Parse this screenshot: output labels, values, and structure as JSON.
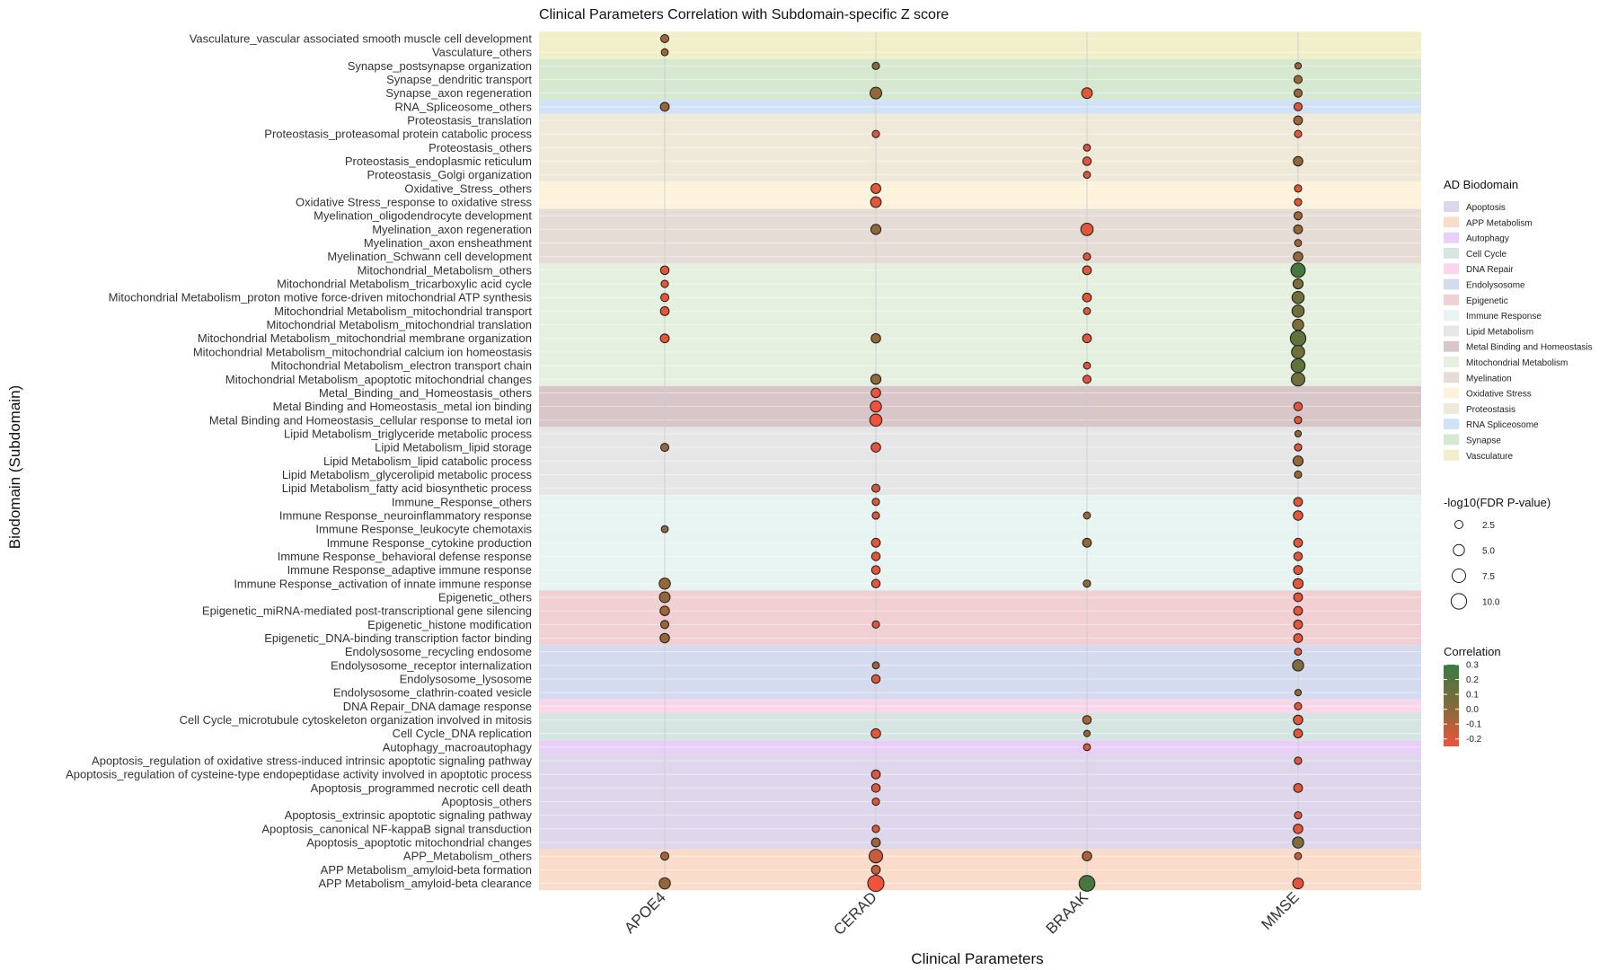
{
  "chart_data": {
    "type": "scatter",
    "title": "Clinical Parameters Correlation with Subdomain-specific Z score",
    "xlabel": "Clinical Parameters",
    "ylabel": "Biodomain (Subdomain)",
    "x_categories": [
      "APOE4",
      "CERAD",
      "BRAAK",
      "MMSE"
    ],
    "y_categories": [
      "Vasculature_vascular associated smooth muscle cell development",
      "Vasculature_others",
      "Synapse_postsynapse organization",
      "Synapse_dendritic transport",
      "Synapse_axon regeneration",
      "RNA_Spliceosome_others",
      "Proteostasis_translation",
      "Proteostasis_proteasomal protein catabolic process",
      "Proteostasis_others",
      "Proteostasis_endoplasmic reticulum",
      "Proteostasis_Golgi organization",
      "Oxidative_Stress_others",
      "Oxidative Stress_response to oxidative stress",
      "Myelination_oligodendrocyte development",
      "Myelination_axon regeneration",
      "Myelination_axon ensheathment",
      "Myelination_Schwann cell development",
      "Mitochondrial_Metabolism_others",
      "Mitochondrial Metabolism_tricarboxylic acid cycle",
      "Mitochondrial Metabolism_proton motive force-driven mitochondrial ATP synthesis",
      "Mitochondrial Metabolism_mitochondrial transport",
      "Mitochondrial Metabolism_mitochondrial translation",
      "Mitochondrial Metabolism_mitochondrial membrane organization",
      "Mitochondrial Metabolism_mitochondrial calcium ion homeostasis",
      "Mitochondrial Metabolism_electron transport chain",
      "Mitochondrial Metabolism_apoptotic mitochondrial changes",
      "Metal_Binding_and_Homeostasis_others",
      "Metal Binding and Homeostasis_metal ion binding",
      "Metal Binding and Homeostasis_cellular response to metal ion",
      "Lipid Metabolism_triglyceride metabolic process",
      "Lipid Metabolism_lipid storage",
      "Lipid Metabolism_lipid catabolic process",
      "Lipid Metabolism_glycerolipid metabolic process",
      "Lipid Metabolism_fatty acid biosynthetic process",
      "Immune_Response_others",
      "Immune Response_neuroinflammatory response",
      "Immune Response_leukocyte chemotaxis",
      "Immune Response_cytokine production",
      "Immune Response_behavioral defense response",
      "Immune Response_adaptive immune response",
      "Immune Response_activation of innate immune response",
      "Epigenetic_others",
      "Epigenetic_miRNA-mediated post-transcriptional gene silencing",
      "Epigenetic_histone modification",
      "Epigenetic_DNA-binding transcription factor binding",
      "Endolysosome_recycling endosome",
      "Endolysosome_receptor internalization",
      "Endolysosome_lysosome",
      "Endolysosome_clathrin-coated vesicle",
      "DNA Repair_DNA damage response",
      "Cell Cycle_microtubule cytoskeleton organization involved in mitosis",
      "Cell Cycle_DNA replication",
      "Autophagy_macroautophagy",
      "Apoptosis_regulation of oxidative stress-induced intrinsic apoptotic signaling pathway",
      "Apoptosis_regulation of cysteine-type endopeptidase activity involved in apoptotic process",
      "Apoptosis_programmed necrotic cell death",
      "Apoptosis_others",
      "Apoptosis_extrinsic apoptotic signaling pathway",
      "Apoptosis_canonical NF-kappaB signal transduction",
      "Apoptosis_apoptotic mitochondrial changes",
      "APP_Metabolism_others",
      "APP Metabolism_amyloid-beta formation",
      "APP Metabolism_amyloid-beta clearance"
    ],
    "bands": [
      {
        "from": 0,
        "to": 1,
        "color": "#f1efc9"
      },
      {
        "from": 2,
        "to": 4,
        "color": "#d6e8d0"
      },
      {
        "from": 5,
        "to": 5,
        "color": "#d2e2f6"
      },
      {
        "from": 6,
        "to": 10,
        "color": "#efe9d9"
      },
      {
        "from": 11,
        "to": 12,
        "color": "#fdf2dc"
      },
      {
        "from": 13,
        "to": 16,
        "color": "#e6dcd6"
      },
      {
        "from": 17,
        "to": 25,
        "color": "#e6f0e0"
      },
      {
        "from": 26,
        "to": 28,
        "color": "#d9c6c8"
      },
      {
        "from": 29,
        "to": 33,
        "color": "#e6e6e6"
      },
      {
        "from": 34,
        "to": 40,
        "color": "#e8f4f2"
      },
      {
        "from": 41,
        "to": 44,
        "color": "#f0d0d3"
      },
      {
        "from": 45,
        "to": 48,
        "color": "#d5dbef"
      },
      {
        "from": 49,
        "to": 49,
        "color": "#f9d6ea"
      },
      {
        "from": 50,
        "to": 51,
        "color": "#d5e5e2"
      },
      {
        "from": 52,
        "to": 52,
        "color": "#e8cff7"
      },
      {
        "from": 53,
        "to": 59,
        "color": "#ded6ea"
      },
      {
        "from": 60,
        "to": 62,
        "color": "#fbdccb"
      }
    ],
    "points": [
      {
        "row": 0,
        "col": 0,
        "r": -0.05,
        "p": 2.5
      },
      {
        "row": 1,
        "col": 0,
        "r": -0.05,
        "p": 1.8
      },
      {
        "row": 2,
        "col": 1,
        "r": 0.0,
        "p": 2.0
      },
      {
        "row": 2,
        "col": 3,
        "r": -0.05,
        "p": 1.5
      },
      {
        "row": 3,
        "col": 3,
        "r": -0.05,
        "p": 2.5
      },
      {
        "row": 4,
        "col": 1,
        "r": -0.02,
        "p": 5.5
      },
      {
        "row": 4,
        "col": 2,
        "r": -0.22,
        "p": 4.5
      },
      {
        "row": 4,
        "col": 3,
        "r": -0.05,
        "p": 2.5
      },
      {
        "row": 5,
        "col": 0,
        "r": -0.03,
        "p": 3.0
      },
      {
        "row": 5,
        "col": 3,
        "r": -0.2,
        "p": 2.5
      },
      {
        "row": 6,
        "col": 3,
        "r": -0.05,
        "p": 3.0
      },
      {
        "row": 7,
        "col": 1,
        "r": -0.2,
        "p": 2.0
      },
      {
        "row": 7,
        "col": 3,
        "r": -0.22,
        "p": 2.0
      },
      {
        "row": 8,
        "col": 2,
        "r": -0.18,
        "p": 1.8
      },
      {
        "row": 9,
        "col": 2,
        "r": -0.2,
        "p": 2.8
      },
      {
        "row": 9,
        "col": 3,
        "r": -0.02,
        "p": 3.5
      },
      {
        "row": 10,
        "col": 2,
        "r": -0.2,
        "p": 1.8
      },
      {
        "row": 11,
        "col": 1,
        "r": -0.22,
        "p": 3.8
      },
      {
        "row": 11,
        "col": 3,
        "r": -0.2,
        "p": 2.0
      },
      {
        "row": 12,
        "col": 1,
        "r": -0.22,
        "p": 4.5
      },
      {
        "row": 12,
        "col": 3,
        "r": -0.22,
        "p": 2.0
      },
      {
        "row": 13,
        "col": 3,
        "r": -0.05,
        "p": 2.5
      },
      {
        "row": 14,
        "col": 1,
        "r": -0.02,
        "p": 4.0
      },
      {
        "row": 14,
        "col": 2,
        "r": -0.22,
        "p": 6.2
      },
      {
        "row": 14,
        "col": 3,
        "r": -0.02,
        "p": 3.0
      },
      {
        "row": 15,
        "col": 3,
        "r": -0.05,
        "p": 1.8
      },
      {
        "row": 16,
        "col": 2,
        "r": -0.2,
        "p": 2.0
      },
      {
        "row": 16,
        "col": 3,
        "r": -0.02,
        "p": 3.5
      },
      {
        "row": 17,
        "col": 0,
        "r": -0.22,
        "p": 2.8
      },
      {
        "row": 17,
        "col": 2,
        "r": -0.22,
        "p": 3.0
      },
      {
        "row": 17,
        "col": 3,
        "r": 0.25,
        "p": 8.5
      },
      {
        "row": 18,
        "col": 0,
        "r": -0.22,
        "p": 2.0
      },
      {
        "row": 18,
        "col": 3,
        "r": 0.05,
        "p": 4.0
      },
      {
        "row": 19,
        "col": 0,
        "r": -0.22,
        "p": 2.5
      },
      {
        "row": 19,
        "col": 2,
        "r": -0.22,
        "p": 3.0
      },
      {
        "row": 19,
        "col": 3,
        "r": 0.1,
        "p": 6.0
      },
      {
        "row": 20,
        "col": 0,
        "r": -0.22,
        "p": 3.0
      },
      {
        "row": 20,
        "col": 2,
        "r": -0.2,
        "p": 1.8
      },
      {
        "row": 20,
        "col": 3,
        "r": 0.1,
        "p": 6.0
      },
      {
        "row": 21,
        "col": 3,
        "r": 0.05,
        "p": 5.0
      },
      {
        "row": 22,
        "col": 0,
        "r": -0.22,
        "p": 3.0
      },
      {
        "row": 22,
        "col": 1,
        "r": -0.02,
        "p": 3.5
      },
      {
        "row": 22,
        "col": 2,
        "r": -0.2,
        "p": 3.0
      },
      {
        "row": 22,
        "col": 3,
        "r": 0.15,
        "p": 10.0
      },
      {
        "row": 23,
        "col": 3,
        "r": 0.1,
        "p": 7.0
      },
      {
        "row": 24,
        "col": 2,
        "r": -0.2,
        "p": 1.8
      },
      {
        "row": 24,
        "col": 3,
        "r": 0.15,
        "p": 8.0
      },
      {
        "row": 25,
        "col": 1,
        "r": -0.02,
        "p": 4.0
      },
      {
        "row": 25,
        "col": 2,
        "r": -0.22,
        "p": 2.5
      },
      {
        "row": 25,
        "col": 3,
        "r": 0.1,
        "p": 7.5
      },
      {
        "row": 26,
        "col": 1,
        "r": -0.25,
        "p": 3.5
      },
      {
        "row": 27,
        "col": 1,
        "r": -0.25,
        "p": 5.0
      },
      {
        "row": 27,
        "col": 3,
        "r": -0.22,
        "p": 2.8
      },
      {
        "row": 28,
        "col": 1,
        "r": -0.25,
        "p": 6.0
      },
      {
        "row": 28,
        "col": 3,
        "r": -0.22,
        "p": 2.0
      },
      {
        "row": 29,
        "col": 3,
        "r": -0.02,
        "p": 1.5
      },
      {
        "row": 30,
        "col": 0,
        "r": -0.02,
        "p": 2.5
      },
      {
        "row": 30,
        "col": 1,
        "r": -0.22,
        "p": 3.5
      },
      {
        "row": 30,
        "col": 3,
        "r": -0.2,
        "p": 2.0
      },
      {
        "row": 31,
        "col": 3,
        "r": -0.02,
        "p": 4.0
      },
      {
        "row": 32,
        "col": 3,
        "r": -0.02,
        "p": 2.0
      },
      {
        "row": 33,
        "col": 1,
        "r": -0.15,
        "p": 2.5
      },
      {
        "row": 34,
        "col": 1,
        "r": -0.2,
        "p": 2.0
      },
      {
        "row": 34,
        "col": 3,
        "r": -0.22,
        "p": 3.0
      },
      {
        "row": 35,
        "col": 1,
        "r": -0.2,
        "p": 2.0
      },
      {
        "row": 35,
        "col": 2,
        "r": -0.05,
        "p": 1.8
      },
      {
        "row": 35,
        "col": 3,
        "r": -0.22,
        "p": 3.5
      },
      {
        "row": 36,
        "col": 0,
        "r": -0.02,
        "p": 1.8
      },
      {
        "row": 37,
        "col": 1,
        "r": -0.22,
        "p": 3.0
      },
      {
        "row": 37,
        "col": 2,
        "r": -0.02,
        "p": 3.0
      },
      {
        "row": 37,
        "col": 3,
        "r": -0.22,
        "p": 3.0
      },
      {
        "row": 38,
        "col": 1,
        "r": -0.22,
        "p": 2.8
      },
      {
        "row": 38,
        "col": 3,
        "r": -0.22,
        "p": 2.8
      },
      {
        "row": 39,
        "col": 1,
        "r": -0.22,
        "p": 2.8
      },
      {
        "row": 39,
        "col": 3,
        "r": -0.22,
        "p": 3.0
      },
      {
        "row": 40,
        "col": 0,
        "r": -0.02,
        "p": 5.0
      },
      {
        "row": 40,
        "col": 1,
        "r": -0.22,
        "p": 2.8
      },
      {
        "row": 40,
        "col": 2,
        "r": -0.02,
        "p": 2.0
      },
      {
        "row": 40,
        "col": 3,
        "r": -0.22,
        "p": 4.0
      },
      {
        "row": 41,
        "col": 0,
        "r": -0.02,
        "p": 4.5
      },
      {
        "row": 41,
        "col": 3,
        "r": -0.22,
        "p": 3.0
      },
      {
        "row": 42,
        "col": 0,
        "r": -0.05,
        "p": 3.5
      },
      {
        "row": 42,
        "col": 3,
        "r": -0.22,
        "p": 3.0
      },
      {
        "row": 43,
        "col": 0,
        "r": -0.05,
        "p": 2.5
      },
      {
        "row": 43,
        "col": 1,
        "r": -0.2,
        "p": 2.0
      },
      {
        "row": 43,
        "col": 3,
        "r": -0.22,
        "p": 3.0
      },
      {
        "row": 44,
        "col": 0,
        "r": -0.02,
        "p": 3.5
      },
      {
        "row": 44,
        "col": 3,
        "r": -0.22,
        "p": 3.0
      },
      {
        "row": 45,
        "col": 3,
        "r": -0.2,
        "p": 1.8
      },
      {
        "row": 46,
        "col": 1,
        "r": -0.05,
        "p": 1.8
      },
      {
        "row": 46,
        "col": 3,
        "r": 0.05,
        "p": 5.0
      },
      {
        "row": 47,
        "col": 1,
        "r": -0.2,
        "p": 2.8
      },
      {
        "row": 48,
        "col": 3,
        "r": -0.02,
        "p": 1.5
      },
      {
        "row": 49,
        "col": 3,
        "r": -0.2,
        "p": 2.0
      },
      {
        "row": 50,
        "col": 2,
        "r": -0.08,
        "p": 2.8
      },
      {
        "row": 50,
        "col": 3,
        "r": -0.22,
        "p": 3.5
      },
      {
        "row": 51,
        "col": 1,
        "r": -0.22,
        "p": 3.5
      },
      {
        "row": 51,
        "col": 2,
        "r": -0.02,
        "p": 1.5
      },
      {
        "row": 51,
        "col": 3,
        "r": -0.22,
        "p": 3.0
      },
      {
        "row": 52,
        "col": 2,
        "r": -0.2,
        "p": 1.8
      },
      {
        "row": 53,
        "col": 3,
        "r": -0.2,
        "p": 2.0
      },
      {
        "row": 54,
        "col": 1,
        "r": -0.2,
        "p": 3.0
      },
      {
        "row": 55,
        "col": 1,
        "r": -0.2,
        "p": 2.8
      },
      {
        "row": 55,
        "col": 3,
        "r": -0.22,
        "p": 3.0
      },
      {
        "row": 56,
        "col": 1,
        "r": -0.2,
        "p": 2.0
      },
      {
        "row": 57,
        "col": 3,
        "r": -0.2,
        "p": 2.0
      },
      {
        "row": 58,
        "col": 1,
        "r": -0.2,
        "p": 2.0
      },
      {
        "row": 58,
        "col": 3,
        "r": -0.22,
        "p": 3.5
      },
      {
        "row": 59,
        "col": 1,
        "r": -0.05,
        "p": 3.0
      },
      {
        "row": 59,
        "col": 3,
        "r": 0.05,
        "p": 5.0
      },
      {
        "row": 60,
        "col": 0,
        "r": -0.05,
        "p": 2.5
      },
      {
        "row": 60,
        "col": 1,
        "r": -0.15,
        "p": 7.5
      },
      {
        "row": 60,
        "col": 2,
        "r": -0.08,
        "p": 3.5
      },
      {
        "row": 60,
        "col": 3,
        "r": -0.15,
        "p": 1.8
      },
      {
        "row": 61,
        "col": 1,
        "r": -0.15,
        "p": 3.0
      },
      {
        "row": 62,
        "col": 0,
        "r": -0.02,
        "p": 5.0
      },
      {
        "row": 62,
        "col": 1,
        "r": -0.25,
        "p": 11.0
      },
      {
        "row": 62,
        "col": 2,
        "r": 0.25,
        "p": 10.5
      },
      {
        "row": 62,
        "col": 3,
        "r": -0.22,
        "p": 4.5
      }
    ],
    "legends": {
      "biodomain": {
        "title": "AD Biodomain",
        "items": [
          {
            "label": "Apoptosis",
            "color": "#ded6ea"
          },
          {
            "label": "APP Metabolism",
            "color": "#fbdccb"
          },
          {
            "label": "Autophagy",
            "color": "#e8cff7"
          },
          {
            "label": "Cell Cycle",
            "color": "#d5e5e2"
          },
          {
            "label": "DNA Repair",
            "color": "#f9d6ea"
          },
          {
            "label": "Endolysosome",
            "color": "#d5dbef"
          },
          {
            "label": "Epigenetic",
            "color": "#f0d0d3"
          },
          {
            "label": "Immune Response",
            "color": "#e8f4f2"
          },
          {
            "label": "Lipid Metabolism",
            "color": "#e6e6e6"
          },
          {
            "label": "Metal Binding and Homeostasis",
            "color": "#d9c6c8"
          },
          {
            "label": "Mitochondrial Metabolism",
            "color": "#e6f0e0"
          },
          {
            "label": "Myelination",
            "color": "#e6dcd6"
          },
          {
            "label": "Oxidative Stress",
            "color": "#fdf2dc"
          },
          {
            "label": "Proteostasis",
            "color": "#efe9d9"
          },
          {
            "label": "RNA Spliceosome",
            "color": "#d2e2f6"
          },
          {
            "label": "Synapse",
            "color": "#d6e8d0"
          },
          {
            "label": "Vasculature",
            "color": "#f1efc9"
          }
        ]
      },
      "size": {
        "title": "-log10(FDR P-value)",
        "values": [
          2.5,
          5.0,
          7.5,
          10.0
        ],
        "labels": [
          "2.5",
          "5.0",
          "7.5",
          "10.0"
        ]
      },
      "color": {
        "title": "Correlation",
        "ticks": [
          0.3,
          0.2,
          0.1,
          0.0,
          -0.1,
          -0.2
        ],
        "labels": [
          "0.3",
          "0.2",
          "0.1",
          "0.0",
          "-0.1",
          "-0.2"
        ],
        "low": "#f0533a",
        "mid": "#8a6a3a",
        "high": "#3a7a40",
        "range": [
          -0.25,
          0.3
        ]
      }
    }
  }
}
